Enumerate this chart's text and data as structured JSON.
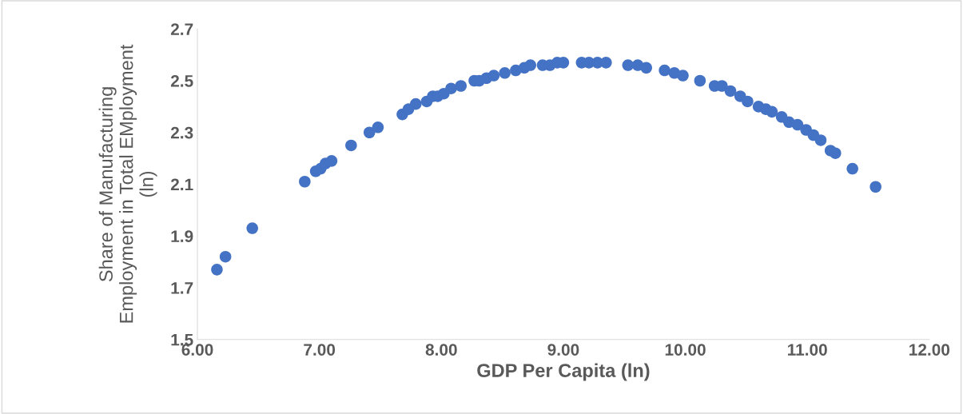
{
  "chart_data": {
    "type": "scatter",
    "xlabel": "GDP Per Capita (ln)",
    "ylabel": "Share of Manufacturing\nEmployment in Total EMployment\n(ln)",
    "x": [
      6.16,
      6.23,
      6.45,
      6.88,
      6.97,
      7.01,
      7.05,
      7.1,
      7.26,
      7.41,
      7.48,
      7.68,
      7.73,
      7.79,
      7.88,
      7.93,
      7.97,
      8.02,
      8.08,
      8.16,
      8.27,
      8.31,
      8.37,
      8.43,
      8.52,
      8.61,
      8.68,
      8.73,
      8.83,
      8.89,
      8.95,
      9.0,
      9.15,
      9.21,
      9.28,
      9.35,
      9.53,
      9.61,
      9.68,
      9.83,
      9.91,
      9.98,
      10.12,
      10.24,
      10.3,
      10.37,
      10.45,
      10.51,
      10.6,
      10.66,
      10.71,
      10.79,
      10.85,
      10.92,
      10.99,
      11.05,
      11.11,
      11.19,
      11.23,
      11.37,
      11.56
    ],
    "series": [
      {
        "color": "#4472c4",
        "values": [
          1.77,
          1.82,
          1.93,
          2.11,
          2.15,
          2.16,
          2.18,
          2.19,
          2.25,
          2.3,
          2.32,
          2.37,
          2.39,
          2.41,
          2.42,
          2.44,
          2.44,
          2.45,
          2.47,
          2.48,
          2.5,
          2.5,
          2.51,
          2.52,
          2.53,
          2.54,
          2.55,
          2.56,
          2.56,
          2.56,
          2.57,
          2.57,
          2.57,
          2.57,
          2.57,
          2.57,
          2.56,
          2.56,
          2.55,
          2.54,
          2.53,
          2.52,
          2.5,
          2.48,
          2.48,
          2.46,
          2.44,
          2.42,
          2.4,
          2.39,
          2.38,
          2.36,
          2.34,
          2.33,
          2.31,
          2.29,
          2.27,
          2.23,
          2.22,
          2.16,
          2.09
        ]
      }
    ],
    "marker": "circle",
    "grid": false,
    "legend": false,
    "xlim": [
      6,
      12
    ],
    "xticks": [
      {
        "value": 6,
        "label": "6.00"
      },
      {
        "value": 7,
        "label": "7.00"
      },
      {
        "value": 8,
        "label": "8.00"
      },
      {
        "value": 9,
        "label": "9.00"
      },
      {
        "value": 10,
        "label": "10.00"
      },
      {
        "value": 11,
        "label": "11.00"
      },
      {
        "value": 12,
        "label": "12.00"
      }
    ],
    "ylim": [
      1.5,
      2.7
    ],
    "yticks": [
      1.5,
      1.7,
      1.9,
      2.1,
      2.3,
      2.5,
      2.7
    ]
  }
}
